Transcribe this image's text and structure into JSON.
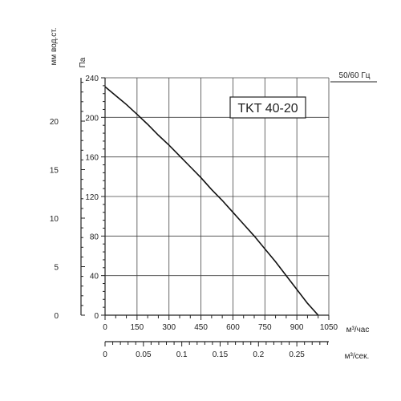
{
  "chart_data": {
    "type": "line",
    "title": "TKT 40-20",
    "frequency_label": "50/60 Гц",
    "y_left_outer": {
      "label": "мм вод.ст.",
      "ticks": [
        0,
        5,
        10,
        15,
        20
      ],
      "ticks_text": [
        "0",
        "5",
        "10",
        "15",
        "20"
      ],
      "factor_pa_per_unit": 9.81
    },
    "y_left": {
      "label": "Па",
      "ylim": [
        0,
        240
      ],
      "ticks": [
        0,
        40,
        80,
        120,
        160,
        200,
        240
      ],
      "ticks_text": [
        "0",
        "40",
        "80",
        "120",
        "160",
        "200",
        "240"
      ]
    },
    "x_hour": {
      "label": "м³/час",
      "xlim": [
        0,
        1050
      ],
      "ticks": [
        0,
        150,
        300,
        450,
        600,
        750,
        900,
        1050
      ],
      "ticks_text": [
        "0",
        "150",
        "300",
        "450",
        "600",
        "750",
        "900",
        "1050"
      ]
    },
    "x_sec": {
      "label": "м³/сек.",
      "xlim": [
        0,
        0.2917
      ],
      "ticks": [
        0,
        0.05,
        0.1,
        0.15,
        0.2,
        0.25
      ],
      "ticks_text": [
        "0",
        "0.05",
        "0.1",
        "0.15",
        "0.2",
        "0.25"
      ]
    },
    "grid": true,
    "series": [
      {
        "x": [
          0,
          50,
          100,
          150,
          200,
          250,
          300,
          350,
          400,
          450,
          500,
          550,
          600,
          650,
          700,
          750,
          800,
          850,
          900,
          950,
          1000
        ],
        "y": [
          231,
          222,
          213,
          203,
          193,
          182,
          172,
          161,
          150,
          139,
          127,
          116,
          104,
          92,
          80,
          67,
          54,
          40,
          26,
          12,
          0
        ]
      }
    ]
  }
}
